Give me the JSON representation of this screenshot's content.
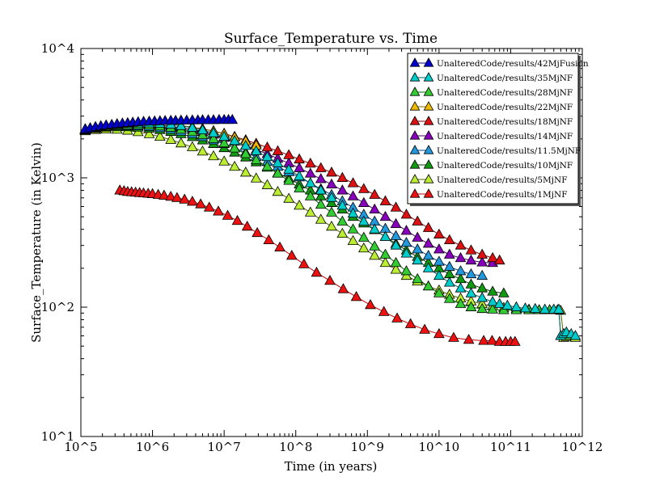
{
  "chart_data": {
    "type": "line",
    "title": "Surface_Temperature vs. Time",
    "xlabel": "Time (in years)",
    "ylabel": "Surface_Temperature (in Kelvin)",
    "x_scale": "log",
    "y_scale": "log",
    "xlim": [
      100000,
      1000000000000
    ],
    "ylim": [
      10,
      10000
    ],
    "x_ticks": [
      {
        "value": 100000,
        "label": "10^5"
      },
      {
        "value": 1000000,
        "label": "10^6"
      },
      {
        "value": 10000000,
        "label": "10^7"
      },
      {
        "value": 100000000,
        "label": "10^8"
      },
      {
        "value": 1000000000,
        "label": "10^9"
      },
      {
        "value": 10000000000,
        "label": "10^10"
      },
      {
        "value": 100000000000,
        "label": "10^11"
      },
      {
        "value": 1000000000000,
        "label": "10^12"
      }
    ],
    "y_ticks": [
      {
        "value": 10,
        "label": "10^1"
      },
      {
        "value": 100,
        "label": "10^2"
      },
      {
        "value": 1000,
        "label": "10^3"
      },
      {
        "value": 10000,
        "label": "10^4"
      }
    ],
    "grid": false,
    "legend_position": "top-right",
    "series": [
      {
        "name": "UnalteredCode/results/42MjFusion",
        "color": "#0000cc",
        "line_color": "#000080",
        "x": [
          115000,
          135000,
          160000,
          190000,
          225000,
          270000,
          320000,
          380000,
          450000,
          530000,
          630000,
          750000,
          900000,
          1070000,
          1270000,
          1500000,
          1800000,
          2100000,
          2500000,
          3000000,
          3600000,
          4300000,
          5000000,
          6000000,
          7100000,
          8500000,
          10000000,
          11500000,
          13000000
        ],
        "y": [
          2380,
          2430,
          2480,
          2520,
          2550,
          2580,
          2610,
          2640,
          2660,
          2680,
          2700,
          2720,
          2730,
          2740,
          2750,
          2760,
          2770,
          2770,
          2780,
          2780,
          2790,
          2790,
          2800,
          2800,
          2800,
          2810,
          2810,
          2810,
          2810
        ]
      },
      {
        "name": "UnalteredCode/results/35MjNF",
        "color": "#00cccc",
        "line_color": "#006666",
        "x": [
          115000,
          160000,
          225000,
          320000,
          450000,
          630000,
          900000,
          1270000,
          1800000,
          2500000,
          3600000,
          5000000,
          7100000,
          10000000,
          14000000,
          20000000,
          28000000,
          40000000,
          56000000,
          80000000,
          112000000,
          160000000,
          224000000,
          316000000,
          447000000,
          630000000,
          890000000,
          1260000000,
          1780000000,
          2500000000,
          3500000000,
          5000000000,
          7100000000,
          10000000000,
          14000000000,
          20000000000,
          28000000000,
          40000000000,
          56000000000,
          70000000000,
          90000000000,
          120000000000,
          160000000000,
          220000000000,
          300000000000,
          400000000000,
          470000000000,
          500000000000,
          550000000000,
          600000000000,
          700000000000,
          800000000000
        ],
        "y": [
          2380,
          2470,
          2540,
          2590,
          2620,
          2640,
          2640,
          2620,
          2580,
          2520,
          2440,
          2340,
          2220,
          2080,
          1930,
          1770,
          1610,
          1450,
          1300,
          1160,
          1030,
          910,
          800,
          700,
          610,
          530,
          460,
          400,
          350,
          300,
          260,
          230,
          200,
          175,
          155,
          140,
          128,
          118,
          110,
          106,
          103,
          100,
          98,
          97,
          96,
          96,
          96,
          60,
          62,
          64,
          62,
          60
        ]
      },
      {
        "name": "UnalteredCode/results/28MjNF",
        "color": "#33cc33",
        "line_color": "#006600",
        "x": [
          115000,
          160000,
          225000,
          320000,
          450000,
          630000,
          900000,
          1270000,
          1800000,
          2500000,
          3600000,
          5000000,
          7100000,
          10000000,
          14000000,
          20000000,
          28000000,
          40000000,
          56000000,
          80000000,
          112000000,
          160000000,
          224000000,
          316000000,
          447000000,
          630000000,
          890000000,
          1260000000,
          1780000000,
          2500000000,
          3500000000,
          5000000000,
          7100000000,
          10000000000,
          14000000000,
          20000000000,
          28000000000,
          40000000000,
          56000000000,
          80000000000,
          120000000000,
          180000000000,
          250000000000,
          350000000000,
          470000000000,
          500000000000,
          550000000000,
          600000000000
        ],
        "y": [
          2360,
          2440,
          2500,
          2540,
          2560,
          2560,
          2540,
          2500,
          2440,
          2360,
          2260,
          2140,
          2000,
          1850,
          1690,
          1530,
          1370,
          1220,
          1080,
          950,
          830,
          720,
          620,
          540,
          460,
          400,
          345,
          295,
          255,
          220,
          190,
          165,
          145,
          128,
          116,
          106,
          100,
          97,
          96,
          95,
          95,
          95,
          95,
          95,
          95,
          60,
          62,
          60
        ]
      },
      {
        "name": "UnalteredCode/results/22MjNF",
        "color": "#eebb00",
        "line_color": "#886600",
        "x": [
          115000,
          160000,
          225000,
          320000,
          450000,
          630000,
          900000,
          1270000,
          1800000,
          2500000,
          3600000,
          5000000,
          7100000,
          10000000,
          14000000,
          20000000,
          28000000
        ],
        "y": [
          2350,
          2440,
          2510,
          2560,
          2600,
          2620,
          2620,
          2610,
          2580,
          2530,
          2470,
          2390,
          2300,
          2190,
          2060,
          1920,
          1780
        ]
      },
      {
        "name": "UnalteredCode/results/18MjNF",
        "color": "#dd1111",
        "line_color": "#880000",
        "x": [
          115000,
          160000,
          225000,
          320000,
          450000,
          630000,
          900000,
          1270000,
          1800000,
          2500000,
          3600000,
          5000000,
          7100000,
          10000000,
          14000000,
          20000000,
          28000000,
          40000000,
          56000000,
          80000000,
          112000000,
          160000000,
          224000000,
          316000000,
          447000000,
          630000000,
          890000000,
          1260000000,
          1780000000,
          2500000000,
          3500000000,
          5000000000,
          7100000000,
          10000000000,
          14000000000,
          20000000000,
          28000000000,
          40000000000,
          56000000000,
          70000000000
        ],
        "y": [
          2350,
          2440,
          2510,
          2560,
          2600,
          2620,
          2620,
          2610,
          2580,
          2530,
          2470,
          2390,
          2300,
          2200,
          2080,
          1960,
          1840,
          1720,
          1610,
          1500,
          1390,
          1290,
          1190,
          1100,
          1000,
          910,
          820,
          740,
          660,
          590,
          520,
          460,
          410,
          365,
          330,
          300,
          275,
          255,
          240,
          230
        ]
      },
      {
        "name": "UnalteredCode/results/14MjNF",
        "color": "#8800bb",
        "line_color": "#440066",
        "x": [
          115000,
          160000,
          225000,
          320000,
          450000,
          630000,
          900000,
          1270000,
          1800000,
          2500000,
          3600000,
          5000000,
          7100000,
          10000000,
          14000000,
          20000000,
          28000000,
          40000000,
          56000000,
          80000000,
          112000000,
          160000000,
          224000000,
          316000000,
          447000000,
          630000000,
          890000000,
          1260000000,
          1780000000,
          2500000000,
          3500000000,
          5000000000,
          7100000000,
          10000000000,
          14000000000,
          20000000000,
          28000000000,
          40000000000,
          56000000000
        ],
        "y": [
          2350,
          2440,
          2510,
          2560,
          2580,
          2590,
          2580,
          2550,
          2500,
          2440,
          2360,
          2270,
          2160,
          2040,
          1910,
          1780,
          1650,
          1530,
          1410,
          1300,
          1190,
          1080,
          980,
          890,
          800,
          720,
          640,
          570,
          500,
          440,
          390,
          345,
          310,
          280,
          255,
          240,
          230,
          222,
          220
        ]
      },
      {
        "name": "UnalteredCode/results/11.5MjNF",
        "color": "#2299dd",
        "line_color": "#004488",
        "x": [
          115000,
          160000,
          225000,
          320000,
          450000,
          630000,
          900000,
          1270000,
          1800000,
          2500000,
          3600000,
          5000000,
          7100000,
          10000000,
          14000000,
          20000000,
          28000000,
          40000000,
          56000000,
          80000000,
          112000000,
          160000000,
          224000000,
          316000000,
          447000000,
          630000000,
          890000000,
          1260000000,
          1780000000,
          2500000000,
          3500000000,
          5000000000,
          7100000000,
          10000000000,
          14000000000,
          20000000000,
          28000000000,
          40000000000
        ],
        "y": [
          2340,
          2420,
          2480,
          2510,
          2520,
          2510,
          2480,
          2430,
          2360,
          2280,
          2180,
          2070,
          1950,
          1830,
          1700,
          1570,
          1450,
          1330,
          1220,
          1110,
          1010,
          910,
          820,
          740,
          660,
          590,
          520,
          460,
          405,
          355,
          315,
          280,
          250,
          225,
          205,
          190,
          180,
          175
        ]
      },
      {
        "name": "UnalteredCode/results/10MjNF",
        "color": "#119911",
        "line_color": "#004400",
        "x": [
          115000,
          160000,
          225000,
          320000,
          450000,
          630000,
          900000,
          1270000,
          1800000,
          2500000,
          3600000,
          5000000,
          7100000,
          10000000,
          14000000,
          20000000,
          28000000,
          40000000,
          56000000,
          80000000,
          112000000,
          160000000,
          224000000,
          316000000,
          447000000,
          630000000,
          890000000,
          1260000000,
          1780000000,
          2500000000,
          3500000000,
          5000000000,
          7100000000,
          10000000000,
          14000000000,
          20000000000,
          28000000000,
          40000000000,
          56000000000,
          80000000000
        ],
        "y": [
          2330,
          2400,
          2450,
          2470,
          2470,
          2450,
          2410,
          2350,
          2270,
          2180,
          2070,
          1950,
          1830,
          1700,
          1570,
          1440,
          1320,
          1200,
          1090,
          990,
          890,
          800,
          720,
          640,
          570,
          500,
          445,
          395,
          350,
          310,
          275,
          245,
          220,
          200,
          180,
          165,
          150,
          140,
          132,
          128
        ]
      },
      {
        "name": "UnalteredCode/results/5MjNF",
        "color": "#bbee33",
        "line_color": "#556600",
        "x": [
          115000,
          160000,
          225000,
          320000,
          450000,
          630000,
          900000,
          1270000,
          1800000,
          2500000,
          3600000,
          5000000,
          7100000,
          10000000,
          14000000,
          20000000,
          28000000,
          40000000,
          56000000,
          80000000,
          112000000,
          160000000,
          224000000,
          316000000,
          447000000,
          630000000,
          890000000,
          1260000000,
          1780000000,
          2500000000,
          3500000000,
          5000000000,
          7100000000,
          10000000000,
          14000000000,
          20000000000,
          28000000000,
          40000000000,
          56000000000,
          80000000000,
          120000000000,
          180000000000,
          250000000000,
          350000000000,
          450000000000,
          500000000000,
          550000000000,
          600000000000,
          650000000000,
          800000000000
        ],
        "y": [
          2300,
          2350,
          2370,
          2360,
          2320,
          2260,
          2180,
          2080,
          1970,
          1850,
          1730,
          1600,
          1470,
          1340,
          1220,
          1100,
          990,
          880,
          780,
          690,
          610,
          540,
          475,
          420,
          370,
          325,
          285,
          250,
          220,
          195,
          175,
          158,
          145,
          135,
          125,
          117,
          111,
          106,
          102,
          99,
          97,
          96,
          95,
          95,
          95,
          94,
          58,
          59,
          60,
          58
        ]
      },
      {
        "name": "UnalteredCode/results/1MjNF",
        "color": "#ee1111",
        "line_color": "#cc0000",
        "x": [
          350000,
          400000,
          450000,
          510000,
          580000,
          660000,
          750000,
          870000,
          1000000,
          1200000,
          1450000,
          1800000,
          2200000,
          2800000,
          3600000,
          4700000,
          6200000,
          8300000,
          11200000,
          15300000,
          21000000,
          29000000,
          42000000,
          60000000,
          88000000,
          130000000,
          195000000,
          300000000,
          460000000,
          700000000,
          1100000000,
          1700000000,
          2600000000,
          4000000000,
          6300000000,
          10000000000,
          16000000000,
          26000000000,
          42000000000,
          55000000000,
          70000000000,
          85000000000,
          100000000000,
          115000000000
        ],
        "y": [
          800,
          790,
          780,
          775,
          770,
          765,
          760,
          755,
          750,
          740,
          730,
          715,
          700,
          680,
          655,
          625,
          590,
          550,
          510,
          465,
          420,
          375,
          330,
          290,
          250,
          215,
          185,
          160,
          138,
          120,
          104,
          92,
          82,
          74,
          67,
          62,
          58,
          56,
          55,
          55,
          54,
          54,
          54,
          54
        ]
      }
    ]
  }
}
